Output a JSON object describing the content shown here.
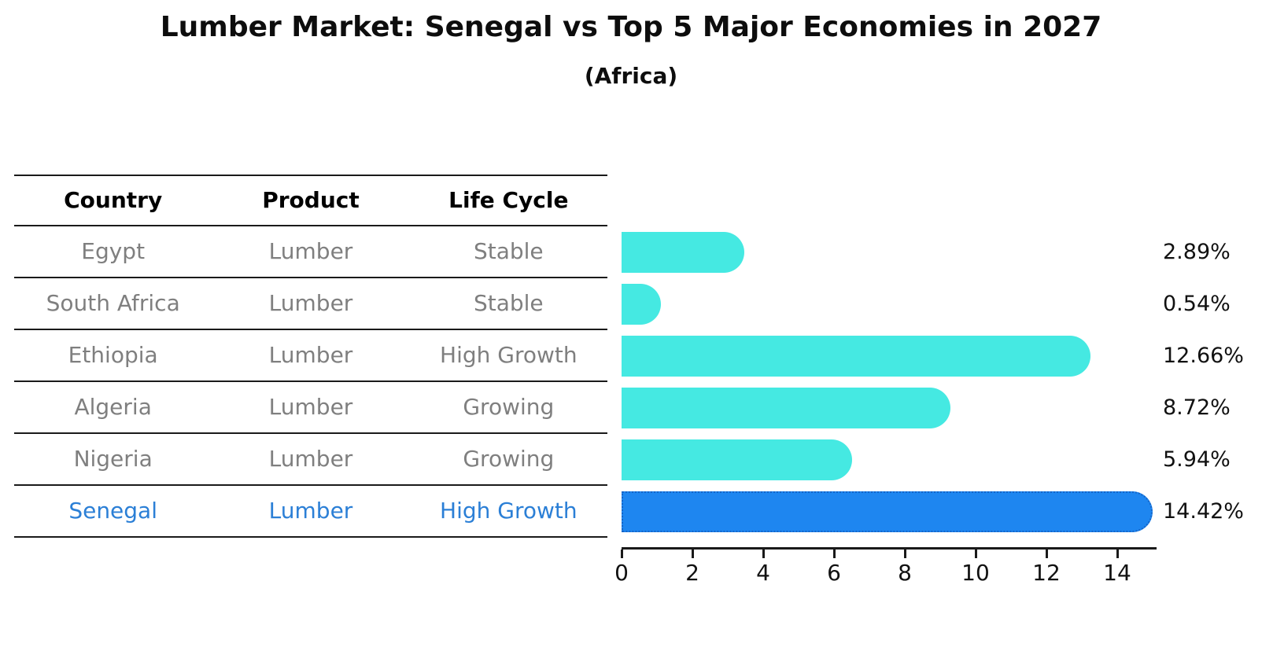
{
  "chart": {
    "title": "Lumber Market: Senegal vs Top 5 Major Economies in 2027",
    "subtitle": "(Africa)"
  },
  "chart_data": {
    "type": "bar",
    "orientation": "horizontal",
    "title": "Lumber Market: Senegal vs Top 5 Major Economies in 2027",
    "subtitle": "(Africa)",
    "columns": [
      "Country",
      "Product",
      "Life Cycle"
    ],
    "rows": [
      {
        "country": "Egypt",
        "product": "Lumber",
        "life_cycle": "Stable",
        "value": 2.89,
        "value_label": "2.89%",
        "highlight": false
      },
      {
        "country": "South Africa",
        "product": "Lumber",
        "life_cycle": "Stable",
        "value": 0.54,
        "value_label": "0.54%",
        "highlight": false
      },
      {
        "country": "Ethiopia",
        "product": "Lumber",
        "life_cycle": "High Growth",
        "value": 12.66,
        "value_label": "12.66%",
        "highlight": false
      },
      {
        "country": "Algeria",
        "product": "Lumber",
        "life_cycle": "Growing",
        "value": 8.72,
        "value_label": "8.72%",
        "highlight": false
      },
      {
        "country": "Nigeria",
        "product": "Lumber",
        "life_cycle": "Growing",
        "value": 5.94,
        "value_label": "5.94%",
        "highlight": false
      },
      {
        "country": "Senegal",
        "product": "Lumber",
        "life_cycle": "High Growth",
        "value": 14.42,
        "value_label": "14.42%",
        "highlight": true
      }
    ],
    "x_ticks": [
      0,
      2,
      4,
      6,
      8,
      10,
      12,
      14
    ],
    "xlim": [
      0,
      15.1
    ],
    "grid": false,
    "legend": false,
    "colors": {
      "bar": "#45E9E2",
      "highlight_bar": "#1E86F0",
      "highlight_bar_border": "#1565C8",
      "row_text": "#7F7F7F",
      "highlight_text": "#2B7FD6",
      "header_text": "#000000",
      "axis": "#1a1a1a",
      "value_text": "#111111"
    }
  }
}
